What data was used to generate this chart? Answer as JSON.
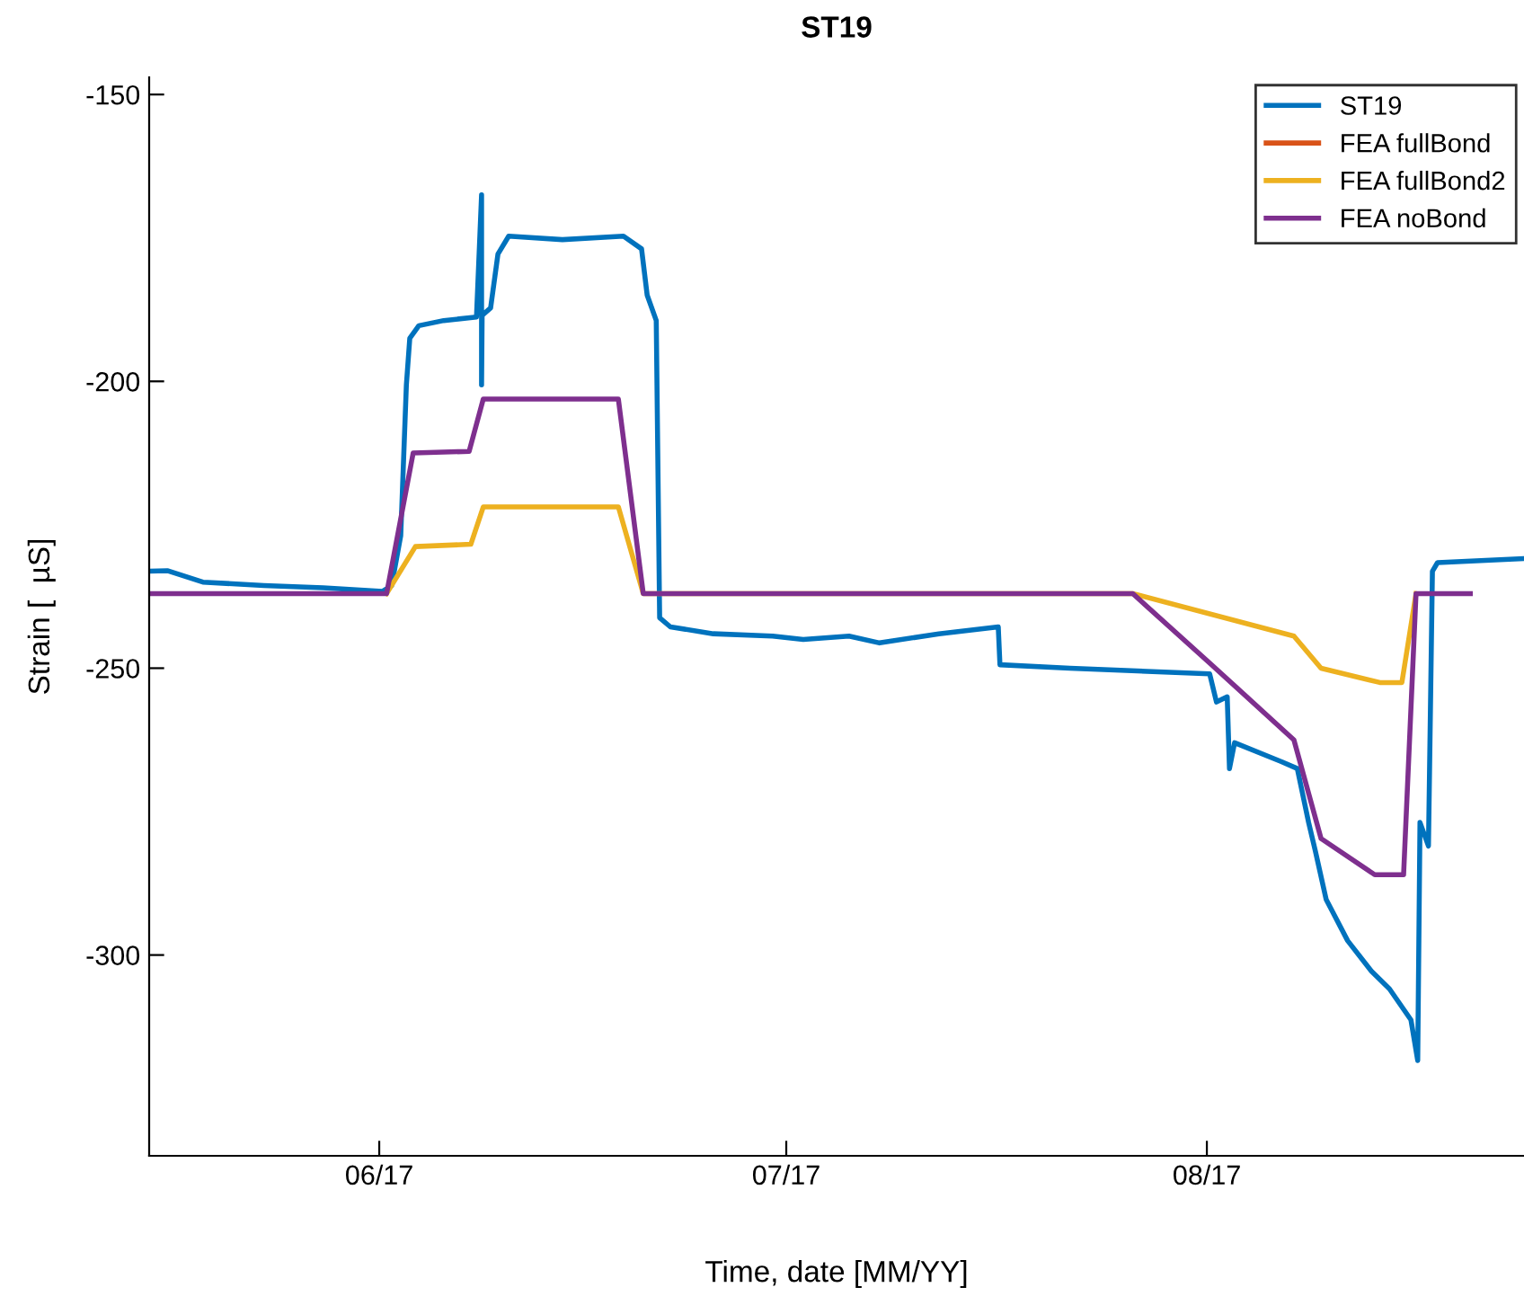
{
  "chart_data": {
    "type": "line",
    "title": "ST19",
    "xlabel": "Time, date [MM/YY]",
    "ylabel": "Strain [  µS]",
    "xlim": [
      "2017-05-15T01:00",
      "2017-08-24T09:00"
    ],
    "ylim": [
      -335,
      -147
    ],
    "xticks": [
      {
        "value": "2017-06-01",
        "label": "06/17"
      },
      {
        "value": "2017-07-01",
        "label": "07/17"
      },
      {
        "value": "2017-08-01",
        "label": "08/17"
      }
    ],
    "yticks": [
      -300,
      -250,
      -200,
      -150
    ],
    "grid": false,
    "legend": "top right",
    "marker": "none",
    "line_style": "solid",
    "series": [
      {
        "name": "ST19",
        "color": "#0072bd",
        "x": [
          "2017-05-15T01:00",
          "2017-05-16T09:00",
          "2017-05-19T00:00",
          "2017-05-23T12:00",
          "2017-05-27T21:00",
          "2017-06-01T06:00",
          "2017-06-01T22:00",
          "2017-06-02T14:00",
          "2017-06-03T00:00",
          "2017-06-03T06:00",
          "2017-06-03T22:00",
          "2017-06-05T18:00",
          "2017-06-08T04:00",
          "2017-06-08T13:00",
          "2017-06-08T13:00",
          "2017-06-08T14:00",
          "2017-06-09T05:00",
          "2017-06-09T18:00",
          "2017-06-10T13:00",
          "2017-06-14T12:00",
          "2017-06-19T00:00",
          "2017-06-20T08:00",
          "2017-06-20T18:00",
          "2017-06-21T10:00",
          "2017-06-21T16:00",
          "2017-06-22T11:00",
          "2017-06-25T15:00",
          "2017-06-30T00:00",
          "2017-07-02T06:00",
          "2017-07-05T15:00",
          "2017-07-07T21:00",
          "2017-07-12T06:00",
          "2017-07-16T15:00",
          "2017-07-16T18:00",
          "2017-07-21T22:00",
          "2017-08-01T05:00",
          "2017-08-01T17:00",
          "2017-08-02T12:00",
          "2017-08-02T16:00",
          "2017-08-03T01:00",
          "2017-08-06T12:00",
          "2017-08-07T16:00",
          "2017-08-08T12:00",
          "2017-08-09T00:00",
          "2017-08-09T19:00",
          "2017-08-11T09:00",
          "2017-08-13T03:00",
          "2017-08-14T11:00",
          "2017-08-16T01:00",
          "2017-08-16T13:00",
          "2017-08-16T17:00",
          "2017-08-17T08:00",
          "2017-08-17T15:00",
          "2017-08-18T00:00",
          "2017-08-24T06:00"
        ],
        "values": [
          -233.1,
          -233,
          -235,
          -235.6,
          -236,
          -236.6,
          -235.6,
          -226.9,
          -200.6,
          -192.5,
          -190.3,
          -189.4,
          -188.8,
          -167.5,
          -200.6,
          -188.5,
          -187.2,
          -177.8,
          -174.7,
          -175.3,
          -174.7,
          -176.9,
          -185,
          -189.4,
          -241.2,
          -242.8,
          -244,
          -244.4,
          -245,
          -244.4,
          -245.6,
          -244,
          -242.8,
          -249.4,
          -250,
          -251,
          -255.9,
          -255,
          -267.5,
          -263,
          -266.3,
          -267.5,
          -276.9,
          -281.9,
          -290.3,
          -297.5,
          -302.8,
          -305.9,
          -311.3,
          -318.4,
          -276.9,
          -281,
          -233.1,
          -231.6,
          -230.9
        ]
      },
      {
        "name": "FEA fullBond",
        "color": "#d95319"
      },
      {
        "name": "FEA fullBond2",
        "color": "#edb120",
        "x": [
          "2017-06-01T13:00",
          "2017-06-03T16:00",
          "2017-06-07T18:00",
          "2017-06-08T16:00",
          "2017-06-18T15:00",
          "2017-06-20T11:00",
          "2017-07-26T13:00",
          "2017-08-07T10:00",
          "2017-08-09T10:00",
          "2017-08-13T18:00",
          "2017-08-15T09:00",
          "2017-08-16T10:00"
        ],
        "values": [
          -237,
          -228.8,
          -228.4,
          -221.9,
          -221.9,
          -237,
          -237,
          -244.4,
          -250,
          -252.5,
          -252.5,
          -237
        ]
      },
      {
        "name": "FEA noBond",
        "color": "#7e2f8e",
        "x": [
          "2017-05-15T01:00",
          "2017-06-01T13:00",
          "2017-06-03T12:00",
          "2017-06-07T15:00",
          "2017-06-08T16:00",
          "2017-06-18T15:00",
          "2017-06-20T11:00",
          "2017-07-26T13:00",
          "2017-08-01T05:00",
          "2017-08-07T10:00",
          "2017-08-09T10:00",
          "2017-08-13T09:00",
          "2017-08-15T12:00",
          "2017-08-16T10:00",
          "2017-08-20T10:00"
        ],
        "values": [
          -237,
          -237,
          -212.5,
          -212.2,
          -203.1,
          -203.1,
          -237,
          -237,
          -249.1,
          -262.5,
          -279.7,
          -286,
          -286,
          -237,
          -237
        ]
      }
    ]
  }
}
